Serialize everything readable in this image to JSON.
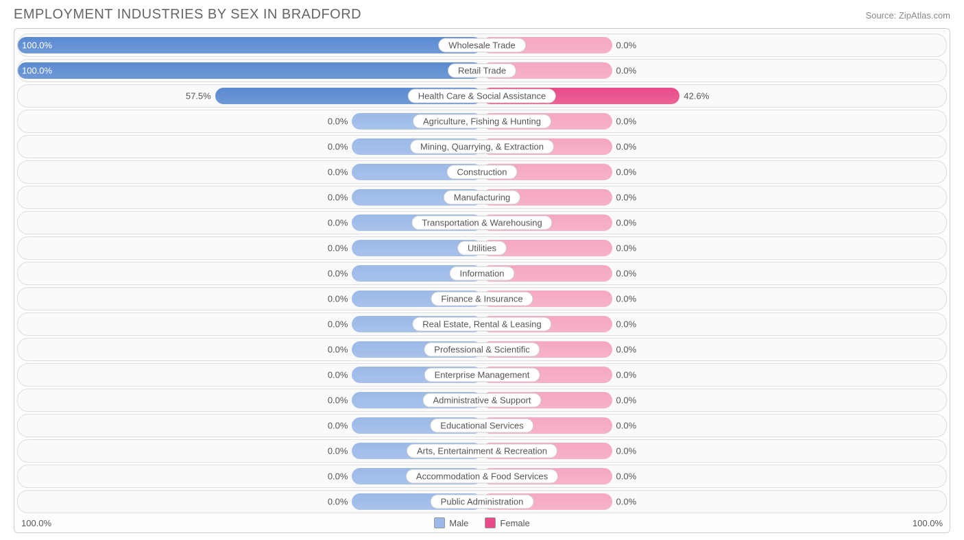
{
  "title": "EMPLOYMENT INDUSTRIES BY SEX IN BRADFORD",
  "source": "Source: ZipAtlas.com",
  "axis_left": "100.0%",
  "axis_right": "100.0%",
  "legend_male": "Male",
  "legend_female": "Female",
  "colors": {
    "male_light": "#9bb9e8",
    "male_strong": "#5a8ad0",
    "female_light": "#f5a8c0",
    "female_strong": "#e84c88",
    "border": "#dddddd",
    "text": "#555555"
  },
  "min_bar_pct": 28,
  "rows": [
    {
      "label": "Wholesale Trade",
      "male": 100.0,
      "female": 0.0,
      "male_strong": true,
      "female_strong": false,
      "male_label": "100.0%",
      "female_label": "0.0%"
    },
    {
      "label": "Retail Trade",
      "male": 100.0,
      "female": 0.0,
      "male_strong": true,
      "female_strong": false,
      "male_label": "100.0%",
      "female_label": "0.0%"
    },
    {
      "label": "Health Care & Social Assistance",
      "male": 57.5,
      "female": 42.6,
      "male_strong": true,
      "female_strong": true,
      "male_label": "57.5%",
      "female_label": "42.6%"
    },
    {
      "label": "Agriculture, Fishing & Hunting",
      "male": 0.0,
      "female": 0.0,
      "male_strong": false,
      "female_strong": false,
      "male_label": "0.0%",
      "female_label": "0.0%"
    },
    {
      "label": "Mining, Quarrying, & Extraction",
      "male": 0.0,
      "female": 0.0,
      "male_strong": false,
      "female_strong": false,
      "male_label": "0.0%",
      "female_label": "0.0%"
    },
    {
      "label": "Construction",
      "male": 0.0,
      "female": 0.0,
      "male_strong": false,
      "female_strong": false,
      "male_label": "0.0%",
      "female_label": "0.0%"
    },
    {
      "label": "Manufacturing",
      "male": 0.0,
      "female": 0.0,
      "male_strong": false,
      "female_strong": false,
      "male_label": "0.0%",
      "female_label": "0.0%"
    },
    {
      "label": "Transportation & Warehousing",
      "male": 0.0,
      "female": 0.0,
      "male_strong": false,
      "female_strong": false,
      "male_label": "0.0%",
      "female_label": "0.0%"
    },
    {
      "label": "Utilities",
      "male": 0.0,
      "female": 0.0,
      "male_strong": false,
      "female_strong": false,
      "male_label": "0.0%",
      "female_label": "0.0%"
    },
    {
      "label": "Information",
      "male": 0.0,
      "female": 0.0,
      "male_strong": false,
      "female_strong": false,
      "male_label": "0.0%",
      "female_label": "0.0%"
    },
    {
      "label": "Finance & Insurance",
      "male": 0.0,
      "female": 0.0,
      "male_strong": false,
      "female_strong": false,
      "male_label": "0.0%",
      "female_label": "0.0%"
    },
    {
      "label": "Real Estate, Rental & Leasing",
      "male": 0.0,
      "female": 0.0,
      "male_strong": false,
      "female_strong": false,
      "male_label": "0.0%",
      "female_label": "0.0%"
    },
    {
      "label": "Professional & Scientific",
      "male": 0.0,
      "female": 0.0,
      "male_strong": false,
      "female_strong": false,
      "male_label": "0.0%",
      "female_label": "0.0%"
    },
    {
      "label": "Enterprise Management",
      "male": 0.0,
      "female": 0.0,
      "male_strong": false,
      "female_strong": false,
      "male_label": "0.0%",
      "female_label": "0.0%"
    },
    {
      "label": "Administrative & Support",
      "male": 0.0,
      "female": 0.0,
      "male_strong": false,
      "female_strong": false,
      "male_label": "0.0%",
      "female_label": "0.0%"
    },
    {
      "label": "Educational Services",
      "male": 0.0,
      "female": 0.0,
      "male_strong": false,
      "female_strong": false,
      "male_label": "0.0%",
      "female_label": "0.0%"
    },
    {
      "label": "Arts, Entertainment & Recreation",
      "male": 0.0,
      "female": 0.0,
      "male_strong": false,
      "female_strong": false,
      "male_label": "0.0%",
      "female_label": "0.0%"
    },
    {
      "label": "Accommodation & Food Services",
      "male": 0.0,
      "female": 0.0,
      "male_strong": false,
      "female_strong": false,
      "male_label": "0.0%",
      "female_label": "0.0%"
    },
    {
      "label": "Public Administration",
      "male": 0.0,
      "female": 0.0,
      "male_strong": false,
      "female_strong": false,
      "male_label": "0.0%",
      "female_label": "0.0%"
    }
  ]
}
